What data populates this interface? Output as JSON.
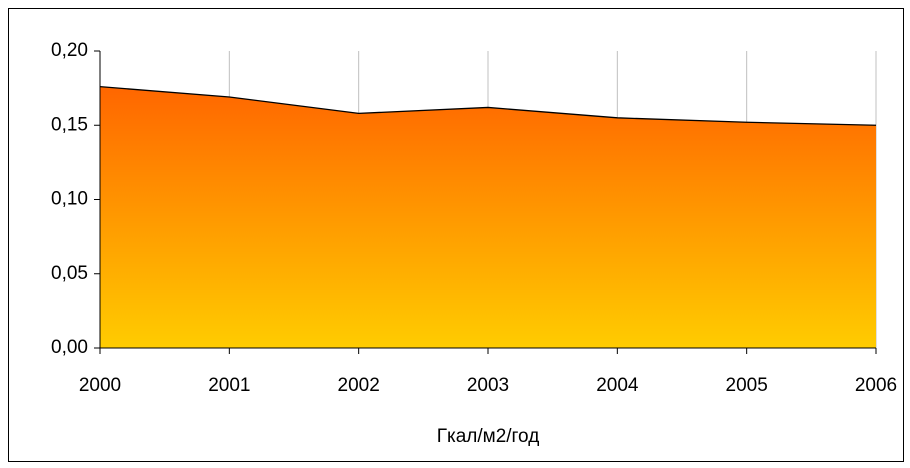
{
  "chart_data": {
    "type": "area",
    "categories": [
      "2000",
      "2001",
      "2002",
      "2003",
      "2004",
      "2005",
      "2006"
    ],
    "values": [
      0.176,
      0.169,
      0.158,
      0.162,
      0.155,
      0.152,
      0.15
    ],
    "x_label": "Гкал/м2/год",
    "gradient": [
      "#ff6600",
      "#ffcc00"
    ],
    "line_color": "#000000",
    "ylim": [
      0,
      0.2
    ],
    "yticks": [
      {
        "value": 0,
        "label": "0,00"
      },
      {
        "value": 0.05,
        "label": "0,05"
      },
      {
        "value": 0.1,
        "label": "0,10"
      },
      {
        "value": 0.15,
        "label": "0,15"
      },
      {
        "value": 0.2,
        "label": "0,20"
      }
    ],
    "grid": "x"
  }
}
